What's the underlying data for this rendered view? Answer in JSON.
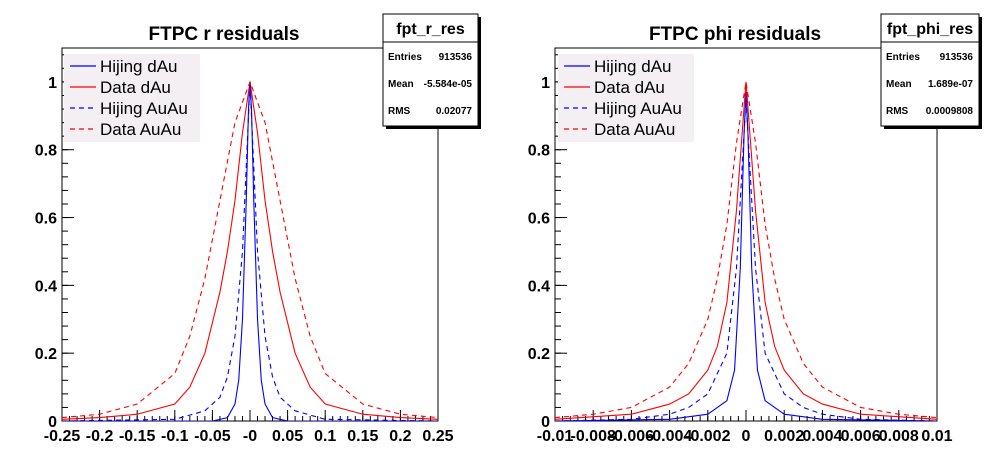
{
  "chart_data": [
    {
      "type": "line",
      "title": "FTPC r residuals",
      "xlabel": "",
      "ylabel": "",
      "xlim": [
        -0.25,
        0.25
      ],
      "ylim": [
        0,
        1.1
      ],
      "x_ticks": [
        -0.25,
        -0.2,
        -0.15,
        -0.1,
        -0.05,
        0,
        0.05,
        0.1,
        0.15,
        0.2,
        0.25
      ],
      "x_tick_labels": [
        "-0.25",
        "-0.2",
        "-0.15",
        "-0.1",
        "-0.05",
        "-0",
        "0.05",
        "0.1",
        "0.15",
        "0.2",
        "0.25"
      ],
      "y_ticks": [
        0,
        0.2,
        0.4,
        0.6,
        0.8,
        1
      ],
      "y_tick_labels": [
        "0",
        "0.2",
        "0.4",
        "0.6",
        "0.8",
        "1"
      ],
      "legend": "top-left",
      "stats": {
        "name": "fpt_r_res",
        "rows": [
          {
            "label": "Entries",
            "value": "913536"
          },
          {
            "label": "Mean",
            "value": "-5.584e-05"
          },
          {
            "label": "RMS",
            "value": "0.02077"
          }
        ]
      },
      "series": [
        {
          "name": "Hijing dAu",
          "color": "#0000ff",
          "dashed": false,
          "x": [
            -0.25,
            -0.05,
            -0.03,
            -0.02,
            -0.015,
            -0.01,
            -0.005,
            -0.002,
            0,
            0.002,
            0.005,
            0.01,
            0.015,
            0.02,
            0.03,
            0.05,
            0.25
          ],
          "y": [
            0,
            0,
            0.01,
            0.05,
            0.12,
            0.3,
            0.65,
            0.92,
            1.0,
            0.92,
            0.65,
            0.3,
            0.12,
            0.05,
            0.01,
            0,
            0
          ]
        },
        {
          "name": "Data dAu",
          "color": "#ff0000",
          "dashed": false,
          "x": [
            -0.25,
            -0.2,
            -0.15,
            -0.1,
            -0.08,
            -0.06,
            -0.04,
            -0.03,
            -0.02,
            -0.01,
            0,
            0.01,
            0.02,
            0.03,
            0.04,
            0.06,
            0.08,
            0.1,
            0.15,
            0.2,
            0.25
          ],
          "y": [
            0.005,
            0.01,
            0.02,
            0.05,
            0.1,
            0.2,
            0.38,
            0.5,
            0.65,
            0.85,
            1.0,
            0.85,
            0.65,
            0.5,
            0.38,
            0.2,
            0.1,
            0.05,
            0.02,
            0.01,
            0.005
          ]
        },
        {
          "name": "Hijing AuAu",
          "color": "#0000ff",
          "dashed": true,
          "x": [
            -0.25,
            -0.1,
            -0.06,
            -0.04,
            -0.03,
            -0.02,
            -0.01,
            -0.005,
            0,
            0.005,
            0.01,
            0.02,
            0.03,
            0.04,
            0.06,
            0.1,
            0.25
          ],
          "y": [
            0,
            0.005,
            0.03,
            0.07,
            0.13,
            0.25,
            0.5,
            0.75,
            1.0,
            0.75,
            0.5,
            0.25,
            0.13,
            0.07,
            0.03,
            0.005,
            0
          ]
        },
        {
          "name": "Data AuAu",
          "color": "#ff0000",
          "dashed": true,
          "x": [
            -0.25,
            -0.2,
            -0.15,
            -0.1,
            -0.08,
            -0.06,
            -0.04,
            -0.02,
            0,
            0.02,
            0.04,
            0.06,
            0.08,
            0.1,
            0.15,
            0.2,
            0.25
          ],
          "y": [
            0.01,
            0.02,
            0.05,
            0.14,
            0.25,
            0.42,
            0.65,
            0.88,
            1.0,
            0.88,
            0.65,
            0.42,
            0.25,
            0.14,
            0.05,
            0.02,
            0.01
          ]
        }
      ]
    },
    {
      "type": "line",
      "title": "FTPC phi residuals",
      "xlabel": "",
      "ylabel": "",
      "xlim": [
        -0.01,
        0.01
      ],
      "ylim": [
        0,
        1.1
      ],
      "x_ticks": [
        -0.01,
        -0.008,
        -0.006,
        -0.004,
        -0.002,
        0,
        0.002,
        0.004,
        0.006,
        0.008,
        0.01
      ],
      "x_tick_labels": [
        "-0.01",
        "-0.008",
        "-0.006",
        "-0.004",
        "-0.002",
        "0",
        "0.002",
        "0.004",
        "0.006",
        "0.008",
        "0.01"
      ],
      "y_ticks": [
        0,
        0.2,
        0.4,
        0.6,
        0.8,
        1
      ],
      "y_tick_labels": [
        "0",
        "0.2",
        "0.4",
        "0.6",
        "0.8",
        "1"
      ],
      "legend": "top-left",
      "stats": {
        "name": "fpt_phi_res",
        "rows": [
          {
            "label": "Entries",
            "value": "913536"
          },
          {
            "label": "Mean",
            "value": "1.689e-07"
          },
          {
            "label": "RMS",
            "value": "0.0009808"
          }
        ]
      },
      "series": [
        {
          "name": "Hijing dAu",
          "color": "#0000ff",
          "dashed": false,
          "x": [
            -0.01,
            -0.004,
            -0.002,
            -0.001,
            -0.0006,
            -0.0003,
            -0.0001,
            0,
            0.0001,
            0.0003,
            0.0006,
            0.001,
            0.002,
            0.004,
            0.01
          ],
          "y": [
            0,
            0.005,
            0.02,
            0.06,
            0.15,
            0.45,
            0.85,
            0.97,
            0.85,
            0.45,
            0.15,
            0.06,
            0.02,
            0.005,
            0
          ]
        },
        {
          "name": "Data dAu",
          "color": "#ff0000",
          "dashed": false,
          "x": [
            -0.01,
            -0.006,
            -0.004,
            -0.003,
            -0.002,
            -0.0015,
            -0.001,
            -0.0005,
            -0.0002,
            0,
            0.0002,
            0.0005,
            0.001,
            0.0015,
            0.002,
            0.003,
            0.004,
            0.006,
            0.01
          ],
          "y": [
            0.005,
            0.02,
            0.05,
            0.08,
            0.15,
            0.22,
            0.35,
            0.62,
            0.85,
            1.0,
            0.85,
            0.62,
            0.35,
            0.22,
            0.15,
            0.08,
            0.05,
            0.02,
            0.005
          ]
        },
        {
          "name": "Hijing AuAu",
          "color": "#0000ff",
          "dashed": true,
          "x": [
            -0.01,
            -0.006,
            -0.004,
            -0.003,
            -0.002,
            -0.001,
            -0.0005,
            -0.0002,
            0,
            0.0002,
            0.0005,
            0.001,
            0.002,
            0.003,
            0.004,
            0.006,
            0.01
          ],
          "y": [
            0,
            0.005,
            0.02,
            0.04,
            0.08,
            0.2,
            0.45,
            0.75,
            0.95,
            0.75,
            0.45,
            0.2,
            0.08,
            0.04,
            0.02,
            0.005,
            0
          ]
        },
        {
          "name": "Data AuAu",
          "color": "#ff0000",
          "dashed": true,
          "x": [
            -0.01,
            -0.008,
            -0.006,
            -0.004,
            -0.003,
            -0.002,
            -0.0015,
            -0.001,
            -0.0005,
            0,
            0.0005,
            0.001,
            0.0015,
            0.002,
            0.003,
            0.004,
            0.006,
            0.008,
            0.01
          ],
          "y": [
            0.01,
            0.02,
            0.04,
            0.1,
            0.17,
            0.3,
            0.42,
            0.58,
            0.82,
            1.0,
            0.82,
            0.58,
            0.42,
            0.3,
            0.17,
            0.1,
            0.04,
            0.02,
            0.01
          ]
        }
      ]
    }
  ]
}
